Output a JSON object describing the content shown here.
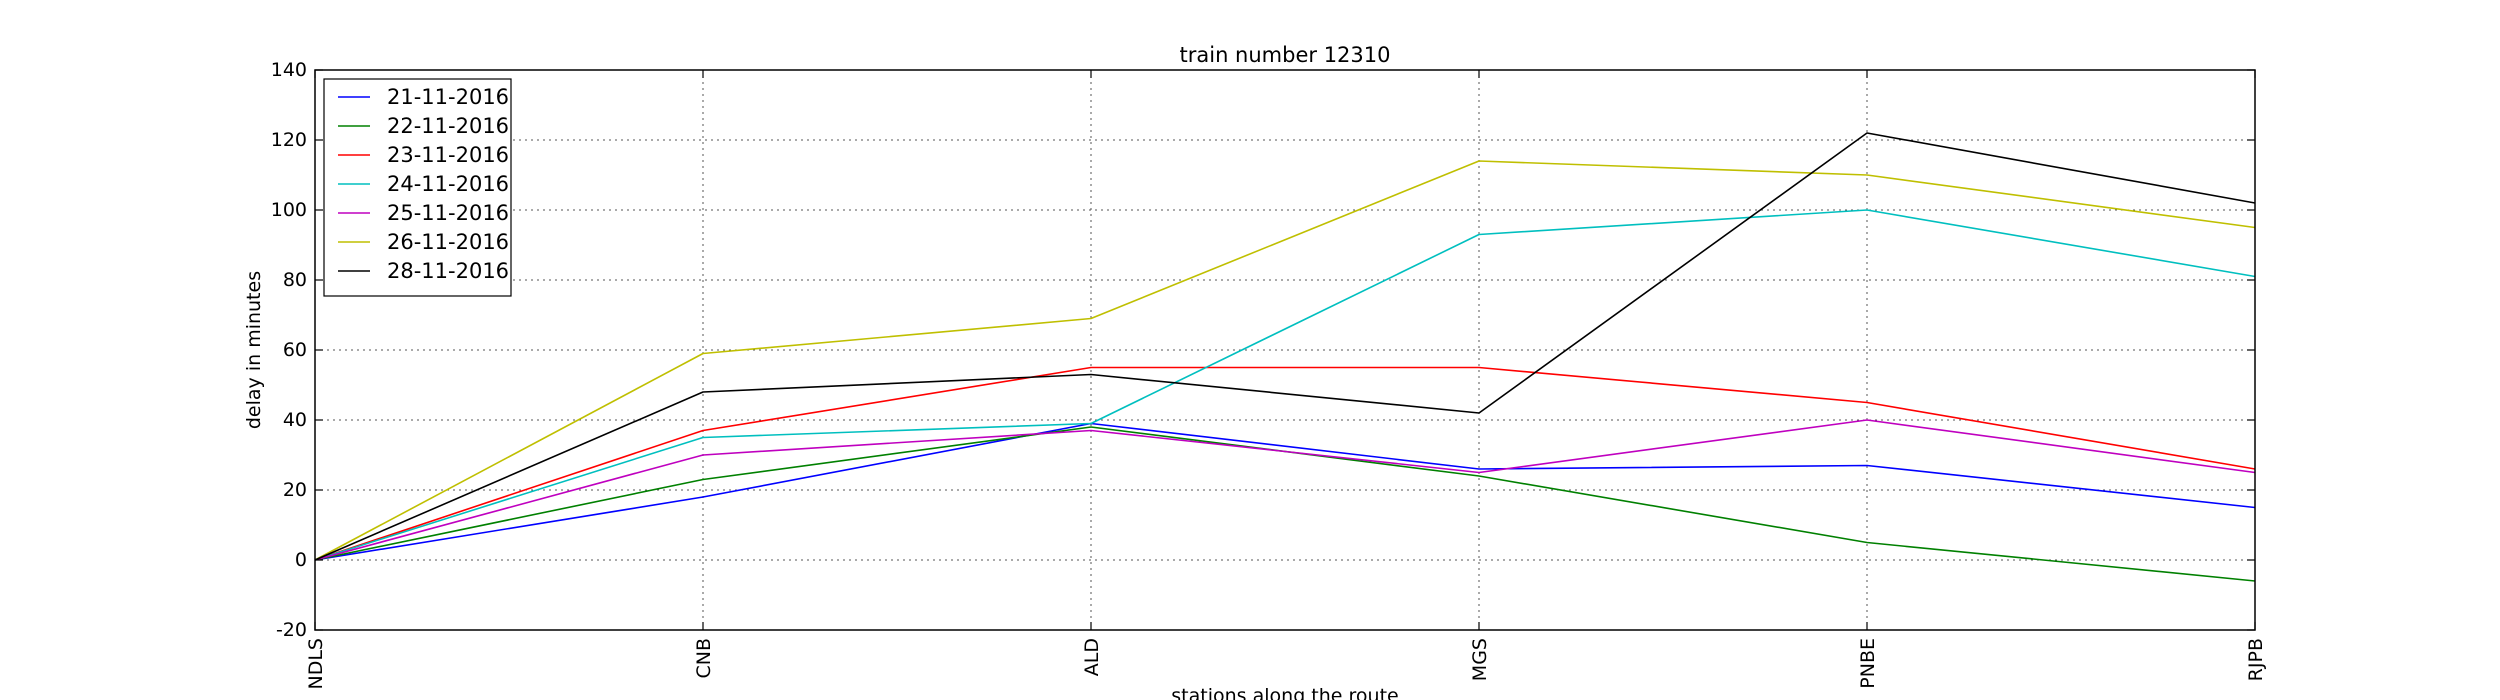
{
  "chart_data": {
    "type": "line",
    "title": "train number 12310",
    "xlabel": "stations along the route",
    "ylabel": "delay in minutes",
    "categories": [
      "NDLS",
      "CNB",
      "ALD",
      "MGS",
      "PNBE",
      "RJPB"
    ],
    "ylim": [
      -20,
      140
    ],
    "yticks": [
      -20,
      0,
      20,
      40,
      60,
      80,
      100,
      120,
      140
    ],
    "grid": true,
    "legend_position": "top-left",
    "series": [
      {
        "name": "21-11-2016",
        "color": "#0000ff",
        "values": [
          0,
          18,
          39,
          26,
          27,
          15
        ]
      },
      {
        "name": "22-11-2016",
        "color": "#008000",
        "values": [
          0,
          23,
          38,
          24,
          5,
          -6
        ]
      },
      {
        "name": "23-11-2016",
        "color": "#ff0000",
        "values": [
          0,
          37,
          55,
          55,
          45,
          26
        ]
      },
      {
        "name": "24-11-2016",
        "color": "#00bfbf",
        "values": [
          0,
          35,
          39,
          93,
          100,
          81
        ]
      },
      {
        "name": "25-11-2016",
        "color": "#bf00bf",
        "values": [
          0,
          30,
          37,
          25,
          40,
          25
        ]
      },
      {
        "name": "26-11-2016",
        "color": "#bfbf00",
        "values": [
          0,
          59,
          69,
          114,
          110,
          95
        ]
      },
      {
        "name": "28-11-2016",
        "color": "#000000",
        "values": [
          0,
          48,
          53,
          42,
          122,
          102
        ]
      }
    ]
  }
}
